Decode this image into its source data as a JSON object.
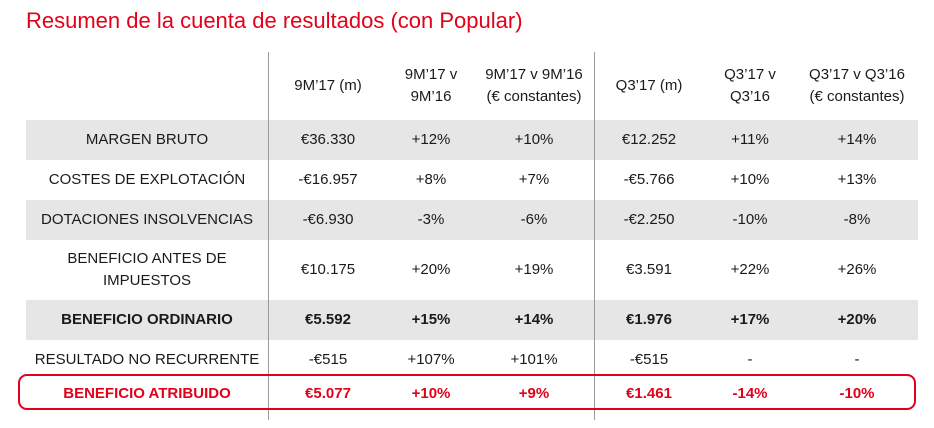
{
  "title": "Resumen de la cuenta de resultados (con Popular)",
  "columns": [
    "9M’17 (m)",
    "9M’17 v\n9M’16",
    "9M’17 v 9M’16\n(€ constantes)",
    "Q3’17 (m)",
    "Q3’17 v\nQ3’16",
    "Q3’17 v Q3’16\n(€ constantes)"
  ],
  "rows": [
    {
      "label": "MARGEN BRUTO",
      "values": [
        "€36.330",
        "+12%",
        "+10%",
        "€12.252",
        "+11%",
        "+14%"
      ]
    },
    {
      "label": "COSTES DE EXPLOTACIÓN",
      "values": [
        "-€16.957",
        "+8%",
        "+7%",
        "-€5.766",
        "+10%",
        "+13%"
      ]
    },
    {
      "label": "DOTACIONES INSOLVENCIAS",
      "values": [
        "-€6.930",
        "-3%",
        "-6%",
        "-€2.250",
        "-10%",
        "-8%"
      ]
    },
    {
      "label": "BENEFICIO ANTES DE\nIMPUESTOS",
      "values": [
        "€10.175",
        "+20%",
        "+19%",
        "€3.591",
        "+22%",
        "+26%"
      ]
    },
    {
      "label": "BENEFICIO ORDINARIO",
      "values": [
        "€5.592",
        "+15%",
        "+14%",
        "€1.976",
        "+17%",
        "+20%"
      ]
    },
    {
      "label": "RESULTADO NO RECURRENTE",
      "values": [
        "-€515",
        "+107%",
        "+101%",
        "-€515",
        "-",
        "-"
      ]
    },
    {
      "label": "BENEFICIO ATRIBUIDO",
      "values": [
        "€5.077",
        "+10%",
        "+9%",
        "€1.461",
        "-14%",
        "-10%"
      ]
    }
  ],
  "colors": {
    "accent": "#e2001a",
    "shade": "#e6e6e6"
  }
}
